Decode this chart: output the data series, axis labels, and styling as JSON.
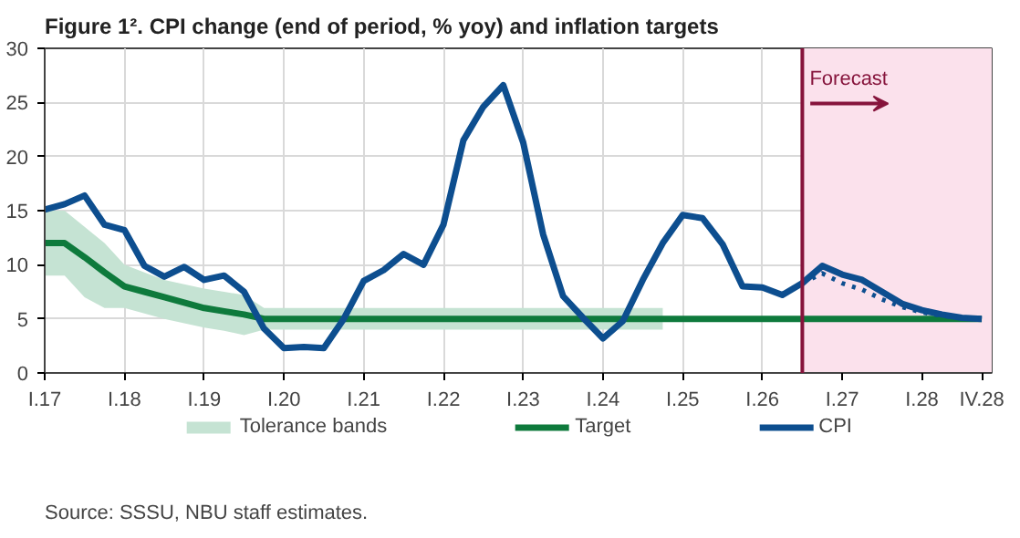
{
  "chart_data": {
    "type": "line",
    "title": "Figure 1². CPI change (end of period, % yoy) and inflation targets",
    "annotations": [
      "Forecast",
      "Source: SSSU, NBU staff estimates."
    ],
    "categories": [
      "I.17",
      null,
      null,
      null,
      "I.18",
      null,
      null,
      null,
      "I.19",
      null,
      null,
      null,
      "I.20",
      null,
      null,
      null,
      "I.21",
      null,
      null,
      null,
      "I.22",
      null,
      null,
      null,
      "I.23",
      null,
      null,
      null,
      "I.24",
      null,
      null,
      null,
      "I.25",
      null,
      null,
      null,
      "I.26",
      null,
      null,
      null,
      "I.27",
      null,
      null,
      null,
      "I.28",
      null,
      null,
      "IV.28"
    ],
    "ylim": [
      0,
      30
    ],
    "yticks": [
      0,
      5,
      10,
      15,
      20,
      25,
      30
    ],
    "grid": true,
    "legend": "bottom",
    "series": [
      {
        "name": "Tolerance bands",
        "type": "area",
        "color": "#c5e3d3",
        "values": [
          null,
          null,
          null,
          null,
          null,
          null,
          null,
          null,
          null,
          null,
          null,
          null,
          null,
          null,
          null,
          null,
          null,
          null,
          null,
          null,
          null,
          null,
          null,
          null,
          null,
          null,
          null,
          null,
          null,
          null,
          null,
          null,
          null,
          null,
          null,
          null,
          null,
          null,
          null,
          null,
          null,
          null,
          null,
          null,
          null,
          null,
          null,
          null
        ]
      },
      {
        "name": "Target",
        "color": "#0e7a3c",
        "values": [
          12,
          12,
          10.7,
          9.3,
          8,
          7.5,
          7,
          6.5,
          6,
          5.7,
          5.4,
          5,
          5,
          5,
          5,
          5,
          5,
          5,
          5,
          5,
          5,
          5,
          5,
          5,
          5,
          5,
          5,
          5,
          5,
          5,
          5,
          5,
          5,
          5,
          5,
          5,
          5,
          5,
          5,
          5,
          5,
          5,
          5,
          5,
          5,
          5,
          5,
          5
        ],
        "lower": [
          9,
          9,
          7,
          6,
          6,
          5.5,
          5,
          4.6,
          4.2,
          3.9,
          3.5,
          4,
          4,
          4,
          4,
          4,
          4,
          4,
          4,
          4,
          4,
          4,
          4,
          4,
          4,
          4,
          4,
          4,
          4,
          4,
          4,
          4,
          null,
          null,
          null,
          null,
          null,
          null,
          null,
          null,
          null,
          null,
          null,
          null,
          null,
          null,
          null,
          null
        ],
        "upper": [
          15,
          15,
          13.5,
          12,
          10,
          9.3,
          8.6,
          8.2,
          7.8,
          7.5,
          7.2,
          6,
          6,
          6,
          6,
          6,
          6,
          6,
          6,
          6,
          6,
          6,
          6,
          6,
          6,
          6,
          6,
          6,
          6,
          6,
          6,
          6,
          null,
          null,
          null,
          null,
          null,
          null,
          null,
          null,
          null,
          null,
          null,
          null,
          null,
          null,
          null,
          null
        ]
      },
      {
        "name": "CPI",
        "color": "#0d4e8f",
        "values": [
          15.1,
          15.6,
          16.4,
          13.7,
          13.2,
          9.9,
          8.9,
          9.8,
          8.6,
          9.0,
          7.5,
          4.1,
          2.3,
          2.4,
          2.3,
          5.0,
          8.5,
          9.5,
          11.0,
          10.0,
          13.7,
          21.5,
          24.6,
          26.6,
          21.3,
          12.8,
          7.1,
          5.1,
          3.2,
          4.8,
          8.6,
          12.0,
          14.6,
          14.3,
          11.9,
          8.0,
          7.9,
          7.2,
          8.3,
          9.9,
          9.1,
          8.6,
          7.5,
          6.4,
          5.8,
          5.4,
          5.1,
          5.0
        ]
      },
      {
        "line_style": "dotted",
        "color": "#0d4e8f",
        "values": [
          null,
          null,
          null,
          null,
          null,
          null,
          null,
          null,
          null,
          null,
          null,
          null,
          null,
          null,
          null,
          null,
          null,
          null,
          null,
          null,
          null,
          null,
          null,
          null,
          null,
          null,
          null,
          null,
          null,
          null,
          null,
          null,
          null,
          null,
          null,
          null,
          null,
          null,
          8.3,
          9.2,
          8.3,
          7.7,
          6.8,
          6.1,
          5.6,
          5.3,
          5.1,
          5.0
        ]
      }
    ]
  }
}
